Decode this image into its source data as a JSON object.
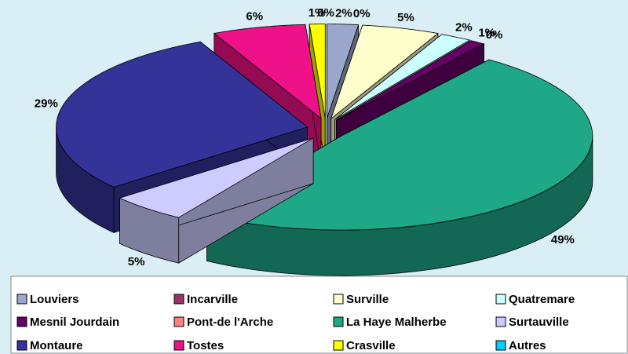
{
  "chart_data": {
    "type": "pie",
    "categories": [
      "Louviers",
      "Incarville",
      "Surville",
      "Quatremare",
      "Mesnil Jourdain",
      "Pont-de l'Arche",
      "La Haye Malherbe",
      "Surtauville",
      "Montaure",
      "Tostes",
      "Crasville",
      "Autres"
    ],
    "values": [
      2,
      0,
      5,
      2,
      1,
      0,
      49,
      5,
      29,
      6,
      1,
      0
    ],
    "value_labels": [
      "2%",
      "0%",
      "5%",
      "2%",
      "1%",
      "0%",
      "49%",
      "5%",
      "29%",
      "6%",
      "1%",
      "0%"
    ],
    "colors": [
      "#9aa6cc",
      "#993366",
      "#ffffcc",
      "#ccffff",
      "#660066",
      "#ff8080",
      "#1fa887",
      "#ccccff",
      "#333399",
      "#ee1188",
      "#ffff00",
      "#00ccff"
    ],
    "legend": "bottom"
  }
}
